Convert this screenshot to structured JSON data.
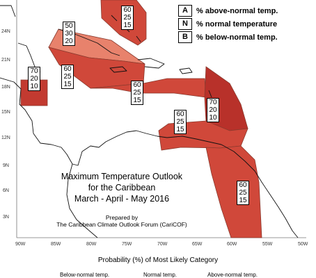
{
  "legend": {
    "items": [
      {
        "key": "A",
        "text": "% above-normal temp."
      },
      {
        "key": "N",
        "text": "% normal temperature"
      },
      {
        "key": "B",
        "text": "% below-normal temp."
      }
    ]
  },
  "axes": {
    "lat_ticks": [
      "24N",
      "21N",
      "18N",
      "15N",
      "12N",
      "9N",
      "6N",
      "3N"
    ],
    "lon_ticks": [
      "90W",
      "85W",
      "80W",
      "75W",
      "70W",
      "65W",
      "60W",
      "55W",
      "50W"
    ]
  },
  "zones": [
    {
      "name": "bahamas",
      "A": "60",
      "N": "25",
      "B": "15"
    },
    {
      "name": "cuba",
      "A": "50",
      "N": "30",
      "B": "20"
    },
    {
      "name": "belize",
      "A": "70",
      "N": "20",
      "B": "10"
    },
    {
      "name": "cayman-jamaica",
      "A": "60",
      "N": "25",
      "B": "15"
    },
    {
      "name": "hispaniola-pr",
      "A": "60",
      "N": "25",
      "B": "15"
    },
    {
      "name": "leeward-windward",
      "A": "70",
      "N": "20",
      "B": "10"
    },
    {
      "name": "abc-trinidad",
      "A": "60",
      "N": "25",
      "B": "15"
    },
    {
      "name": "guianas",
      "A": "60",
      "N": "25",
      "B": "15"
    }
  ],
  "title": {
    "line1": "Maximum Temperature Outlook",
    "line2": "for the Caribbean",
    "line3": "March - April - May 2016"
  },
  "credit": {
    "line1": "Prepared by",
    "line2": "The Caribbean Climate Outlook Forum (CariCOF)"
  },
  "probability": {
    "title": "Probability (%) of Most Likely Category",
    "categories": [
      "Below-normal temp.",
      "Normal temp.",
      "Above-normal temp."
    ]
  },
  "colors": {
    "pct_60": "#d0483a",
    "pct_70": "#b8312a",
    "pct_50": "#e8826c",
    "border": "#8a3a2e"
  }
}
